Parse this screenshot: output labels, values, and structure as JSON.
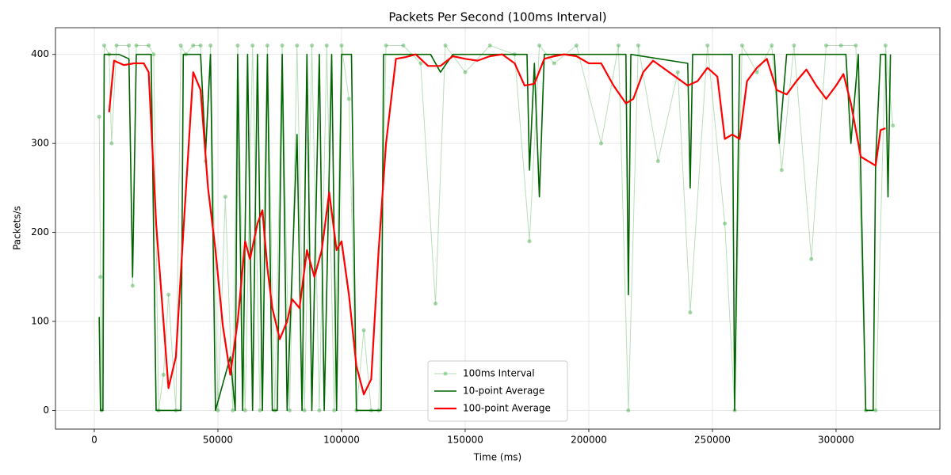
{
  "chart_data": {
    "type": "line",
    "title": "Packets Per Second (100ms Interval)",
    "x_label": "Time (ms)",
    "y_label": "Packets/s",
    "xlim": [
      -15700,
      342000
    ],
    "ylim": [
      -21,
      430
    ],
    "xticks": [
      0,
      50000,
      100000,
      150000,
      200000,
      250000,
      300000
    ],
    "yticks": [
      0,
      100,
      200,
      300,
      400
    ],
    "grid": true,
    "legend": "lower center",
    "series": [
      {
        "name": "100ms Interval",
        "color": "#4caf50",
        "marker": true,
        "x": [
          2000,
          2500,
          3000,
          4000,
          6000,
          7000,
          9000,
          14000,
          15500,
          17000,
          22000,
          24000,
          26000,
          28000,
          30000,
          33000,
          35000,
          37000,
          40000,
          43000,
          45000,
          47000,
          50000,
          53000,
          56000,
          58000,
          61000,
          64000,
          67000,
          70000,
          73000,
          76000,
          79000,
          82000,
          85000,
          88000,
          91000,
          94000,
          97000,
          100000,
          103000,
          106000,
          109000,
          112000,
          115000,
          118000,
          125000,
          132000,
          138000,
          142000,
          150000,
          160000,
          170000,
          176000,
          180000,
          186000,
          195000,
          205000,
          212000,
          216000,
          220000,
          228000,
          236000,
          241000,
          248000,
          255000,
          259000,
          262000,
          268000,
          274000,
          278000,
          283000,
          290000,
          296000,
          302000,
          308000,
          312000,
          316000,
          320000,
          323000
        ],
        "values": [
          330,
          150,
          0,
          410,
          400,
          300,
          410,
          410,
          140,
          410,
          410,
          400,
          0,
          40,
          130,
          0,
          410,
          400,
          410,
          410,
          280,
          410,
          0,
          240,
          0,
          410,
          0,
          410,
          0,
          410,
          0,
          410,
          0,
          410,
          0,
          410,
          0,
          410,
          0,
          410,
          350,
          0,
          90,
          0,
          0,
          410,
          410,
          390,
          120,
          410,
          380,
          410,
          400,
          190,
          410,
          390,
          410,
          300,
          410,
          0,
          410,
          280,
          380,
          110,
          410,
          210,
          0,
          410,
          380,
          410,
          270,
          410,
          170,
          410,
          410,
          410,
          0,
          0,
          410,
          320
        ]
      },
      {
        "name": "10-point Average",
        "color": "#006400",
        "marker": false,
        "x": [
          2000,
          2500,
          3500,
          4000,
          10000,
          14000,
          15500,
          17000,
          23000,
          25000,
          35000,
          36000,
          43000,
          45000,
          47000,
          49000,
          55000,
          57000,
          58000,
          60000,
          62000,
          64000,
          66000,
          68000,
          70000,
          72000,
          74000,
          76000,
          78000,
          82000,
          84000,
          86000,
          88000,
          91000,
          93000,
          96000,
          98000,
          100000,
          104000,
          106000,
          116000,
          117000,
          136000,
          140000,
          145000,
          175000,
          176000,
          178000,
          180000,
          182000,
          215000,
          216000,
          217000,
          240000,
          241000,
          242000,
          258000,
          259000,
          261000,
          275000,
          277000,
          280000,
          300000,
          304000,
          306000,
          309000,
          312000,
          315000,
          316000,
          318000,
          320000,
          321000,
          322000
        ],
        "values": [
          105,
          0,
          0,
          400,
          400,
          395,
          150,
          400,
          400,
          0,
          0,
          400,
          400,
          290,
          400,
          0,
          60,
          0,
          400,
          0,
          400,
          0,
          400,
          0,
          400,
          0,
          0,
          400,
          0,
          310,
          0,
          400,
          0,
          400,
          0,
          400,
          0,
          400,
          400,
          0,
          0,
          400,
          400,
          380,
          400,
          400,
          270,
          390,
          240,
          400,
          400,
          130,
          400,
          390,
          250,
          400,
          400,
          0,
          400,
          400,
          300,
          400,
          400,
          400,
          300,
          400,
          0,
          0,
          280,
          400,
          400,
          240,
          400
        ]
      },
      {
        "name": "100-point Average",
        "color": "#ff0000",
        "marker": false,
        "x": [
          6000,
          8000,
          12000,
          16000,
          20000,
          22000,
          25000,
          28000,
          30000,
          33000,
          36000,
          40000,
          43000,
          46000,
          49000,
          52000,
          55000,
          58000,
          61000,
          63000,
          66000,
          68000,
          70000,
          72000,
          75000,
          78000,
          80000,
          83000,
          86000,
          89000,
          92000,
          95000,
          98000,
          100000,
          103000,
          106000,
          109000,
          112000,
          115000,
          118000,
          122000,
          126000,
          130000,
          135000,
          140000,
          145000,
          150000,
          155000,
          160000,
          165000,
          170000,
          174000,
          178000,
          182000,
          186000,
          190000,
          195000,
          200000,
          205000,
          210000,
          215000,
          218000,
          222000,
          226000,
          230000,
          235000,
          240000,
          244000,
          248000,
          252000,
          255000,
          258000,
          261000,
          264000,
          268000,
          272000,
          276000,
          280000,
          284000,
          288000,
          292000,
          296000,
          300000,
          303000,
          306000,
          310000,
          313000,
          316000,
          318000,
          320000
        ],
        "values": [
          335,
          393,
          388,
          390,
          390,
          380,
          210,
          100,
          25,
          60,
          200,
          380,
          360,
          250,
          180,
          95,
          40,
          100,
          190,
          170,
          210,
          225,
          160,
          115,
          80,
          100,
          125,
          115,
          180,
          150,
          180,
          245,
          180,
          190,
          130,
          50,
          18,
          35,
          180,
          300,
          395,
          397,
          400,
          387,
          387,
          398,
          395,
          393,
          398,
          400,
          390,
          365,
          367,
          395,
          398,
          400,
          398,
          390,
          390,
          365,
          345,
          350,
          380,
          393,
          385,
          375,
          365,
          370,
          385,
          375,
          305,
          310,
          305,
          370,
          385,
          395,
          360,
          355,
          370,
          383,
          365,
          350,
          365,
          378,
          345,
          285,
          280,
          275,
          315,
          317
        ]
      }
    ]
  }
}
